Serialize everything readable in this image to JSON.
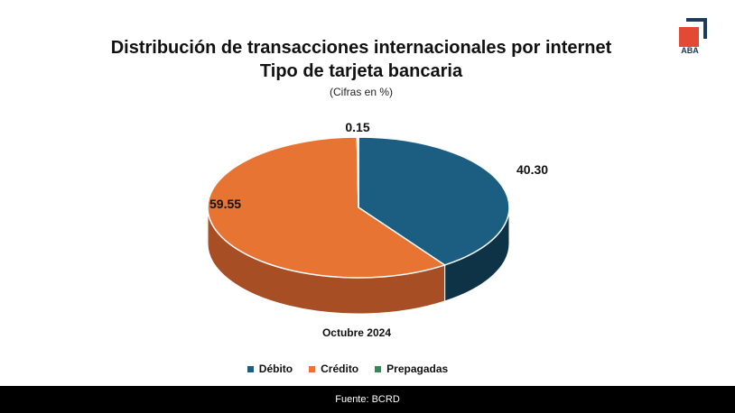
{
  "header": {
    "title_line1": "Distribución de transacciones internacionales por internet",
    "title_line2": "Tipo de tarjeta bancaria",
    "subtitle": "(Cifras en %)"
  },
  "logo": {
    "text": "ABA",
    "colors": {
      "square": "#E34A33",
      "corner": "#1F3A5C"
    }
  },
  "chart_data": {
    "type": "pie",
    "style": "3d",
    "title": "Distribución de transacciones internacionales por internet — Tipo de tarjeta bancaria",
    "subtitle": "(Cifras en %)",
    "period": "Octubre 2024",
    "legend_position": "bottom",
    "slices": [
      {
        "name": "Débito",
        "value": 40.3,
        "label": "40.30",
        "color": "#1B5E82",
        "side_color": "#0E3346"
      },
      {
        "name": "Crédito",
        "value": 59.55,
        "label": "59.55",
        "color": "#E87433",
        "side_color": "#A84E25"
      },
      {
        "name": "Prepagadas",
        "value": 0.15,
        "label": "0.15",
        "color": "#2E8B57",
        "side_color": "#1C5E39"
      }
    ]
  },
  "footer": {
    "source": "Fuente: BCRD"
  }
}
